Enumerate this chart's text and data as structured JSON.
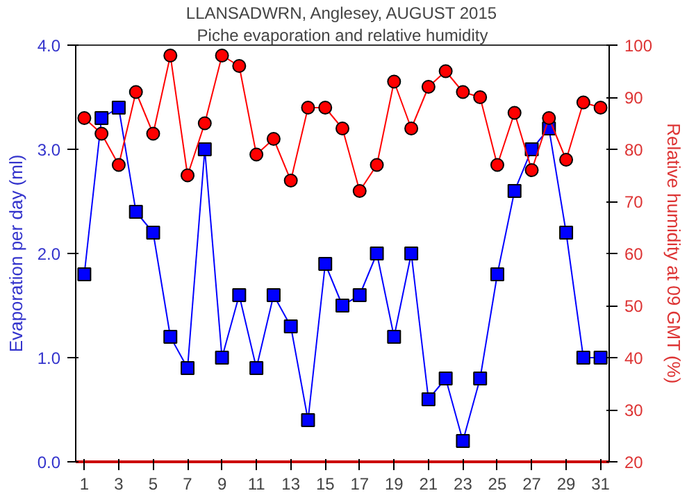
{
  "chart_data": {
    "type": "line",
    "title": "LLANSADWRN, Anglesey, AUGUST 2015",
    "subtitle": "Piche evaporation and relative humidity",
    "ylabel": "Evaporation per day (ml)",
    "y2label": "Relative humidity at 09 GMT (%)",
    "x": [
      1,
      2,
      3,
      4,
      5,
      6,
      7,
      8,
      9,
      10,
      11,
      12,
      13,
      14,
      15,
      16,
      17,
      18,
      19,
      20,
      21,
      22,
      23,
      24,
      25,
      26,
      27,
      28,
      29,
      30,
      31
    ],
    "xlim": [
      0.5,
      31.5
    ],
    "xticks": [
      1,
      3,
      5,
      7,
      9,
      11,
      13,
      15,
      17,
      19,
      21,
      23,
      25,
      27,
      29,
      31
    ],
    "ylim": [
      0,
      4
    ],
    "yticks": [
      {
        "value": 0,
        "label": "0.0"
      },
      {
        "value": 1,
        "label": "1.0"
      },
      {
        "value": 2,
        "label": "2.0"
      },
      {
        "value": 3,
        "label": "3.0"
      },
      {
        "value": 4,
        "label": "4.0"
      }
    ],
    "y2lim": [
      20,
      100
    ],
    "y2ticks": [
      20,
      30,
      40,
      50,
      60,
      70,
      80,
      90,
      100
    ],
    "grid": false,
    "series": [
      {
        "color": "#0000ff",
        "marker": "square",
        "values": [
          1.8,
          3.3,
          3.4,
          2.4,
          2.2,
          1.2,
          0.9,
          3.0,
          1.0,
          1.6,
          0.9,
          1.6,
          1.3,
          0.4,
          1.9,
          1.5,
          1.6,
          2.0,
          1.2,
          2.0,
          0.6,
          0.8,
          0.2,
          0.8,
          1.8,
          2.6,
          3.0,
          3.2,
          2.2,
          1.0,
          1.0
        ]
      },
      {
        "color": "#ff0000",
        "marker": "circle",
        "axis": "y2",
        "values": [
          86,
          83,
          77,
          91,
          83,
          98,
          75,
          85,
          98,
          96,
          79,
          82,
          74,
          88,
          88,
          84,
          72,
          77,
          93,
          84,
          92,
          95,
          91,
          90,
          77,
          87,
          76,
          86,
          78,
          89,
          88
        ]
      }
    ]
  }
}
